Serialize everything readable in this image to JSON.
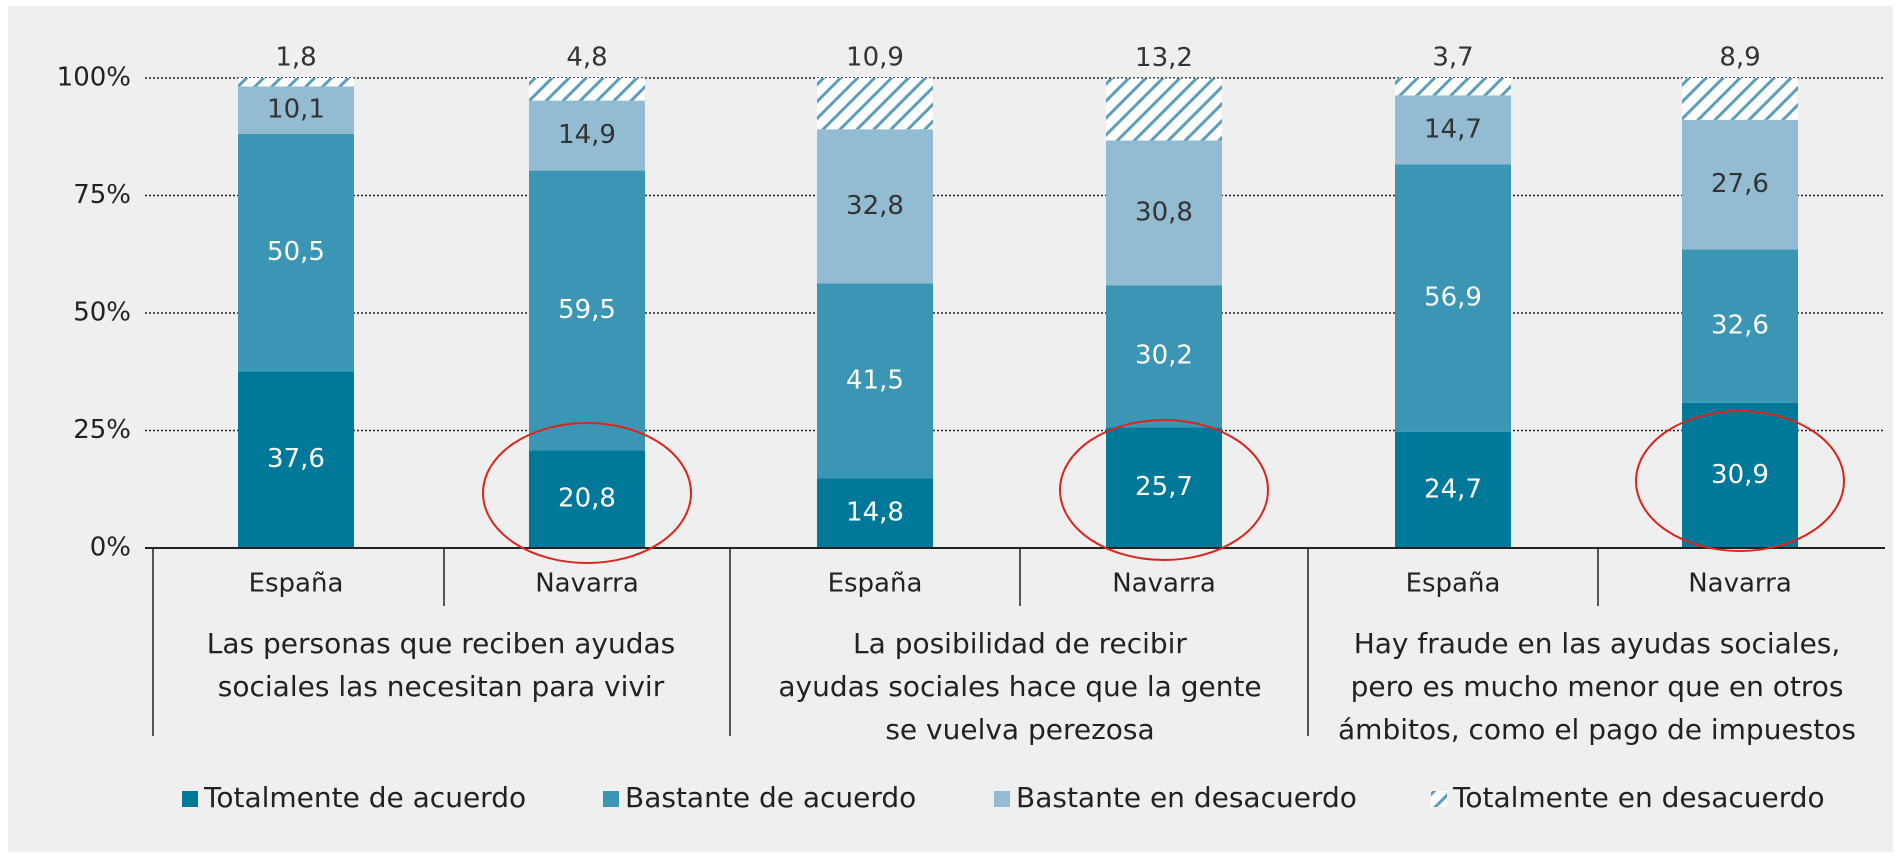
{
  "chart_data": {
    "type": "stacked_bar",
    "categories": [
      "España",
      "Navarra",
      "España",
      "Navarra",
      "España",
      "Navarra"
    ],
    "groups": [
      {
        "lines": [
          "Las personas que reciben ayudas",
          "sociales las necesitan para vivir"
        ]
      },
      {
        "lines": [
          "La posibilidad de recibir",
          "ayudas sociales hace que la gente",
          "se vuelva perezosa"
        ]
      },
      {
        "lines": [
          "Hay fraude en las ayudas sociales,",
          "pero es mucho menor que en otros",
          "ámbitos, como el pago de impuestos"
        ]
      }
    ],
    "series": [
      {
        "name": "Totalmente de acuerdo",
        "color": "#00789a",
        "label_color": "#ffffff",
        "values": [
          37.6,
          20.8,
          14.8,
          25.7,
          24.7,
          30.9
        ],
        "value_labels": [
          "37,6",
          "20,8",
          "14,8",
          "25,7",
          "24,7",
          "30,9"
        ]
      },
      {
        "name": "Bastante de acuerdo",
        "color": "#3a96b4",
        "label_color": "#ffffff",
        "values": [
          50.5,
          59.5,
          41.5,
          30.2,
          56.9,
          32.6
        ],
        "value_labels": [
          "50,5",
          "59,5",
          "41,5",
          "30,2",
          "56,9",
          "32,6"
        ]
      },
      {
        "name": "Bastante en desacuerdo",
        "color": "#93bbd1",
        "label_color": "#333333",
        "values": [
          10.1,
          14.9,
          32.8,
          30.8,
          14.7,
          27.6
        ],
        "value_labels": [
          "10,1",
          "14,9",
          "32,8",
          "30,8",
          "14,7",
          "27,6"
        ]
      },
      {
        "name": "Totalmente en desacuerdo",
        "color": "#5c9dbd",
        "label_color": "#333333",
        "pattern": "hatch",
        "label_position": "above",
        "values": [
          1.8,
          4.8,
          10.9,
          13.2,
          3.7,
          8.9
        ],
        "value_labels": [
          "1,8",
          "4,8",
          "10,9",
          "13,2",
          "3,7",
          "8,9"
        ]
      }
    ],
    "ylim": [
      0,
      100
    ],
    "yticks": [
      {
        "value": 0,
        "label": "0%"
      },
      {
        "value": 25,
        "label": "25%"
      },
      {
        "value": 50,
        "label": "50%"
      },
      {
        "value": 75,
        "label": "75%"
      },
      {
        "value": 100,
        "label": "100%"
      }
    ],
    "grid": true,
    "legend": "bottom"
  }
}
